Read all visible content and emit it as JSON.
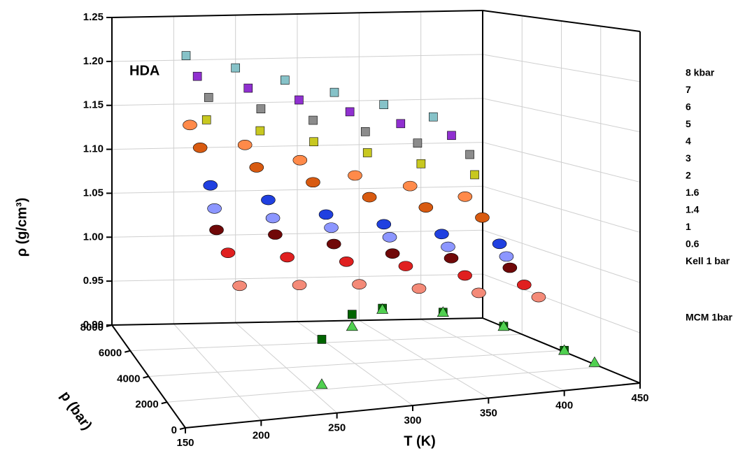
{
  "chart_data": {
    "type": "scatter3d",
    "xlabel": "T (K)",
    "ylabel": "p (bar)",
    "zlabel": "ρ (g/cm³)",
    "annotation": "HDA",
    "xlim": [
      150,
      450
    ],
    "xticks": [
      150,
      200,
      250,
      300,
      350,
      400,
      450
    ],
    "ylim": [
      0,
      8000
    ],
    "yticks": [
      0,
      2000,
      4000,
      6000,
      8000
    ],
    "zlim": [
      0.9,
      1.25
    ],
    "zticks": [
      {
        "value": 0.9,
        "label": "0.90"
      },
      0.95,
      {
        "value": 1,
        "label": "1.00"
      },
      1.05,
      {
        "value": 1.1,
        "label": "1.10"
      },
      1.15,
      {
        "value": 1.2,
        "label": "1.20"
      },
      1.25
    ],
    "grid": true,
    "series": [
      {
        "name": "8 kbar",
        "color": "#86c2c8",
        "marker": "square",
        "p": 8000,
        "x": [
          210,
          250,
          290,
          330,
          370,
          410
        ],
        "z": [
          1.205,
          1.19,
          1.175,
          1.16,
          1.145,
          1.13
        ]
      },
      {
        "name": "7",
        "color": "#9030d0",
        "marker": "square",
        "p": 7000,
        "x": [
          210,
          250,
          290,
          330,
          370,
          410
        ],
        "z": [
          1.19,
          1.175,
          1.16,
          1.145,
          1.13,
          1.115
        ]
      },
      {
        "name": "6",
        "color": "#8c8c8c",
        "marker": "square",
        "p": 6000,
        "x": [
          210,
          250,
          290,
          330,
          370,
          410
        ],
        "z": [
          1.175,
          1.16,
          1.145,
          1.13,
          1.115,
          1.1
        ]
      },
      {
        "name": "5",
        "color": "#c8c820",
        "marker": "square",
        "p": 5000,
        "x": [
          200,
          240,
          280,
          320,
          360,
          400
        ],
        "z": [
          1.16,
          1.145,
          1.13,
          1.115,
          1.1,
          1.085
        ]
      },
      {
        "name": "4",
        "color": "#ff8a4a",
        "marker": "circle",
        "p": 4000,
        "x": [
          180,
          220,
          260,
          300,
          340,
          380
        ],
        "z": [
          1.165,
          1.14,
          1.12,
          1.1,
          1.085,
          1.07
        ]
      },
      {
        "name": "3",
        "color": "#d85a10",
        "marker": "circle",
        "p": 3000,
        "x": [
          180,
          220,
          260,
          300,
          340,
          380
        ],
        "z": [
          1.15,
          1.125,
          1.105,
          1.085,
          1.07,
          1.055
        ]
      },
      {
        "name": "2",
        "color": "#2040e0",
        "marker": "circle",
        "p": 2000,
        "x": [
          180,
          220,
          260,
          300,
          340,
          380
        ],
        "z": [
          1.12,
          1.1,
          1.08,
          1.065,
          1.05,
          1.035
        ]
      },
      {
        "name": "1.6",
        "color": "#8c96ff",
        "marker": "circle",
        "p": 1600,
        "x": [
          180,
          220,
          260,
          300,
          340,
          380
        ],
        "z": [
          1.1,
          1.085,
          1.07,
          1.055,
          1.04,
          1.025
        ]
      },
      {
        "name": "1.4",
        "color": "#700808",
        "marker": "circle",
        "p": 1400,
        "x": [
          180,
          220,
          260,
          300,
          340,
          380
        ],
        "z": [
          1.08,
          1.07,
          1.055,
          1.04,
          1.03,
          1.015
        ]
      },
      {
        "name": "1",
        "color": "#e02020",
        "marker": "circle",
        "p": 1000,
        "x": [
          185,
          225,
          265,
          305,
          345,
          385
        ],
        "z": [
          1.06,
          1.05,
          1.04,
          1.03,
          1.015,
          1.0
        ]
      },
      {
        "name": "0.6",
        "color": "#f48a78",
        "marker": "circle",
        "p": 600,
        "x": [
          190,
          230,
          270,
          310,
          350,
          390
        ],
        "z": [
          1.03,
          1.025,
          1.02,
          1.01,
          1.0,
          0.99
        ]
      },
      {
        "name": "Kell 1 bar",
        "color": "#006400",
        "marker": "square",
        "p": 1,
        "x": [
          240,
          260,
          280,
          320,
          360,
          400
        ],
        "z": [
          0.975,
          0.997,
          1.0,
          0.99,
          0.97,
          0.94
        ]
      },
      {
        "name": "MCM 1bar",
        "color": "#50d050",
        "marker": "triangle",
        "p": 1,
        "x": [
          240,
          260,
          280,
          320,
          360,
          400,
          420
        ],
        "z": [
          0.93,
          0.985,
          0.999,
          0.99,
          0.97,
          0.94,
          0.925
        ]
      }
    ]
  }
}
